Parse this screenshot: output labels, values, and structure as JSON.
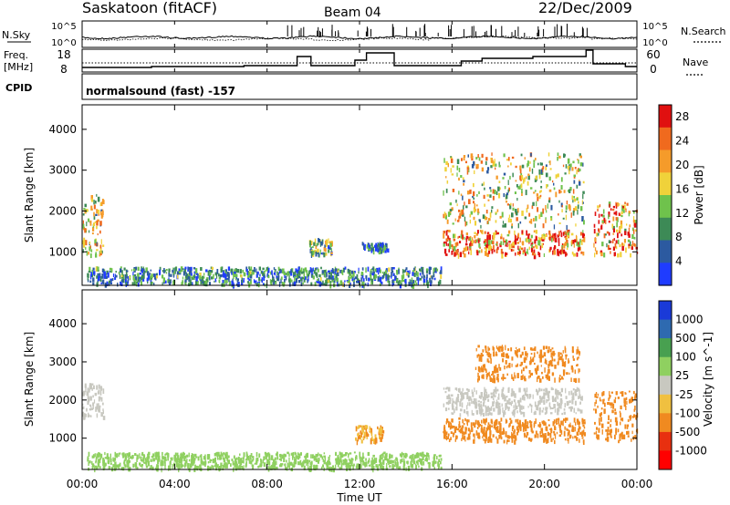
{
  "header": {
    "station": "Saskatoon (fitACF)",
    "beam": "Beam 04",
    "date": "22/Dec/2009"
  },
  "noise_panel": {
    "left_label": "N.Sky",
    "right_label": "N.Search",
    "y_ticks_left": [
      "10^5",
      "10^0"
    ],
    "y_ticks_right": [
      "10^5",
      "10^0"
    ]
  },
  "freq_panel": {
    "left_label_1": "Freq.",
    "left_label_2": "[MHz]",
    "right_label": "Nave",
    "y_ticks_left": [
      "18",
      "8"
    ],
    "y_ticks_right": [
      "60",
      "0"
    ]
  },
  "cpid_panel": {
    "label": "CPID",
    "mode": "normalsound (fast) -157"
  },
  "time_axis": {
    "title": "Time UT",
    "ticks": [
      "00:00",
      "04:00",
      "08:00",
      "12:00",
      "16:00",
      "20:00",
      "00:00"
    ]
  },
  "colors": {
    "power": [
      "#1f3cff",
      "#2c5aa0",
      "#3d8a56",
      "#6fc24c",
      "#f0d23a",
      "#f59b2a",
      "#f06a1e",
      "#e01010"
    ],
    "velocity": [
      "#1a3ad8",
      "#2e6ab0",
      "#48a050",
      "#8fd060",
      "#c8c8c0",
      "#f0c040",
      "#f08a20",
      "#e83010",
      "#ff0000"
    ]
  },
  "chart_data": [
    {
      "type": "heatmap",
      "title": "",
      "ylabel": "Slant Range [km]",
      "xlabel": "",
      "ylim": [
        180,
        4600
      ],
      "y_ticks": [
        "1000",
        "2000",
        "3000",
        "4000"
      ],
      "colorbar": {
        "label": "Power [dB]",
        "ticks": [
          "4",
          "8",
          "12",
          "16",
          "20",
          "24",
          "28"
        ],
        "range": [
          0,
          30
        ]
      },
      "echo_regions": [
        {
          "t_start": 0.0,
          "t_end": 0.9,
          "r_min": 900,
          "r_max": 2400,
          "value": 16
        },
        {
          "t_start": 0.2,
          "t_end": 15.5,
          "r_min": 180,
          "r_max": 600,
          "value": 8
        },
        {
          "t_start": 9.8,
          "t_end": 10.8,
          "r_min": 900,
          "r_max": 1300,
          "value": 12
        },
        {
          "t_start": 12.1,
          "t_end": 13.2,
          "r_min": 1000,
          "r_max": 1200,
          "value": 6
        },
        {
          "t_start": 15.6,
          "t_end": 21.7,
          "r_min": 900,
          "r_max": 1500,
          "value": 24
        },
        {
          "t_start": 15.6,
          "t_end": 21.7,
          "r_min": 1600,
          "r_max": 3400,
          "value": 16
        },
        {
          "t_start": 22.1,
          "t_end": 24.0,
          "r_min": 900,
          "r_max": 2200,
          "value": 22
        }
      ]
    },
    {
      "type": "heatmap",
      "title": "",
      "ylabel": "Slant Range [km]",
      "xlabel": "Time UT",
      "ylim": [
        180,
        4600
      ],
      "y_ticks": [
        "1000",
        "2000",
        "3000",
        "4000"
      ],
      "colorbar": {
        "label": "Velocity [m s^-1]",
        "ticks": [
          "1000",
          "500",
          "100",
          "25",
          "-25",
          "-100",
          "-500",
          "-1000"
        ],
        "range": [
          -1000,
          1000
        ]
      },
      "echo_regions": [
        {
          "t_start": 0.0,
          "t_end": 0.9,
          "r_min": 1500,
          "r_max": 2400,
          "value": 0
        },
        {
          "t_start": 0.2,
          "t_end": 15.5,
          "r_min": 180,
          "r_max": 600,
          "value": 60
        },
        {
          "t_start": 11.8,
          "t_end": 13.0,
          "r_min": 900,
          "r_max": 1300,
          "value": -100
        },
        {
          "t_start": 15.6,
          "t_end": 21.7,
          "r_min": 900,
          "r_max": 1500,
          "value": -150
        },
        {
          "t_start": 15.6,
          "t_end": 21.7,
          "r_min": 1600,
          "r_max": 2300,
          "value": 0
        },
        {
          "t_start": 17.0,
          "t_end": 21.5,
          "r_min": 2500,
          "r_max": 3400,
          "value": -300
        },
        {
          "t_start": 22.1,
          "t_end": 24.0,
          "r_min": 900,
          "r_max": 2200,
          "value": -150
        }
      ]
    }
  ]
}
